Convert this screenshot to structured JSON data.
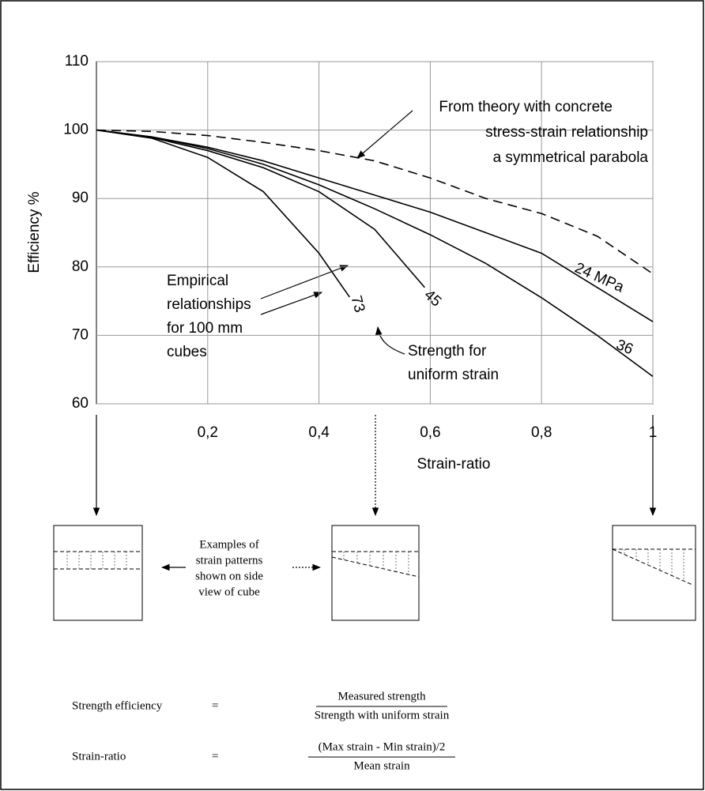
{
  "chart_data": {
    "type": "line",
    "xlabel": "Strain-ratio",
    "ylabel": "Efficiency %",
    "xlim": [
      0,
      1
    ],
    "ylim": [
      60,
      110
    ],
    "xticks": [
      {
        "value": 0.2,
        "label": "0,2"
      },
      {
        "value": 0.4,
        "label": "0,4"
      },
      {
        "value": 0.6,
        "label": "0,6"
      },
      {
        "value": 0.8,
        "label": "0,8"
      },
      1
    ],
    "yticks": [
      60,
      70,
      80,
      90,
      100,
      110
    ],
    "grid": true,
    "series": [
      {
        "name": "24 MPa",
        "color": "#000000",
        "dash": false,
        "x": [
          0,
          0.1,
          0.2,
          0.3,
          0.4,
          0.5,
          0.6,
          0.7,
          0.8,
          0.9,
          1
        ],
        "values": [
          100,
          99,
          97.5,
          95.5,
          93,
          90.5,
          88,
          85,
          82,
          77,
          72
        ]
      },
      {
        "name": "36",
        "color": "#000000",
        "dash": false,
        "x": [
          0,
          0.1,
          0.2,
          0.3,
          0.4,
          0.5,
          0.6,
          0.7,
          0.8,
          0.9,
          1
        ],
        "values": [
          100,
          99,
          97.3,
          95,
          92,
          88.5,
          84.7,
          80.5,
          75.5,
          70,
          64
        ]
      },
      {
        "name": "45",
        "color": "#000000",
        "dash": false,
        "x": [
          0,
          0.1,
          0.2,
          0.3,
          0.4,
          0.5,
          0.59
        ],
        "values": [
          100,
          98.9,
          97,
          94.5,
          91,
          85.5,
          77
        ]
      },
      {
        "name": "73",
        "color": "#000000",
        "dash": false,
        "x": [
          0,
          0.1,
          0.2,
          0.3,
          0.4,
          0.455
        ],
        "values": [
          100,
          98.8,
          96,
          91,
          82,
          75.6
        ]
      },
      {
        "color": "#000000",
        "dash": true,
        "x": [
          0,
          0.1,
          0.2,
          0.3,
          0.4,
          0.5,
          0.6,
          0.7,
          0.8,
          0.9,
          1
        ],
        "values": [
          100,
          99.8,
          99.2,
          98.2,
          97,
          95.5,
          93,
          90,
          87.8,
          84.5,
          79
        ]
      }
    ],
    "annotations": [
      {
        "lines": [
          "From theory with concrete",
          "stress-strain relationship",
          "a symmetrical parabola"
        ]
      },
      {
        "lines": [
          "Empirical",
          "relationships",
          "for 100 mm",
          "cubes"
        ]
      },
      {
        "lines": [
          "Strength for",
          "uniform strain"
        ]
      }
    ]
  },
  "diagram": {
    "caption": [
      "Examples of",
      "strain patterns",
      "shown on side",
      "view of cube"
    ]
  },
  "formulas": [
    {
      "lhs": "Strength efficiency",
      "eq": "=",
      "num": "Measured strength",
      "den": "Strength with uniform strain"
    },
    {
      "lhs": "Strain-ratio",
      "eq": "=",
      "num": "(Max strain - Min strain)/2",
      "den": "Mean strain"
    }
  ]
}
